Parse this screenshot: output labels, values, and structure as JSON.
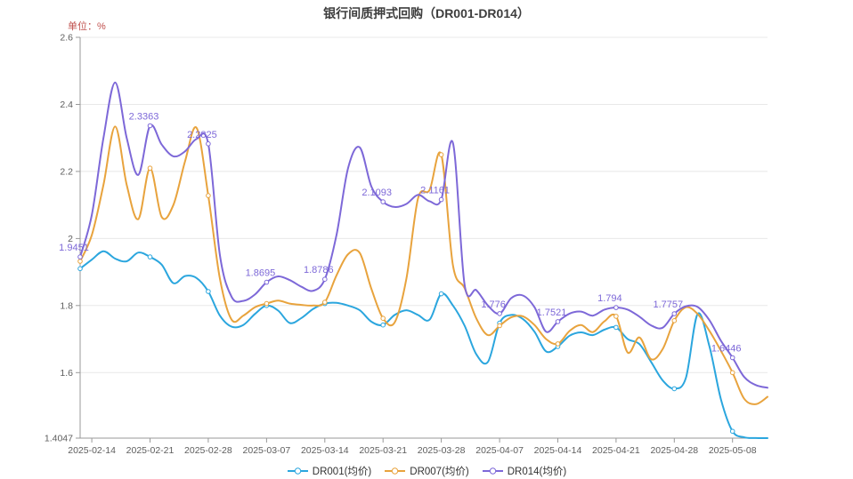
{
  "header": {
    "title": "银行间质押式回购（DR001-DR014）",
    "unit_label": "单位：%"
  },
  "chart_data": {
    "type": "line",
    "title": "银行间质押式回购（DR001-DR014）",
    "ylabel": "单位：%",
    "grid": true,
    "legend_position": "bottom",
    "smooth": true,
    "ylim": [
      1.4047,
      2.6
    ],
    "yticks": [
      {
        "value": 2.6,
        "label": "2.6",
        "gridline": true
      },
      {
        "value": 2.4,
        "label": "2.4",
        "gridline": true
      },
      {
        "value": 2.2,
        "label": "2.2",
        "gridline": true
      },
      {
        "value": 2.0,
        "label": "2",
        "gridline": true
      },
      {
        "value": 1.8,
        "label": "1.8",
        "gridline": true
      },
      {
        "value": 1.6,
        "label": "1.6",
        "gridline": true
      },
      {
        "value": 1.4047,
        "label": "1.4047",
        "gridline": false
      }
    ],
    "x_tick_labels": [
      "2025-02-14",
      "2025-02-21",
      "2025-02-28",
      "2025-03-07",
      "2025-03-14",
      "2025-03-21",
      "2025-03-28",
      "2025-04-07",
      "2025-04-14",
      "2025-04-21",
      "2025-04-28",
      "2025-05-08"
    ],
    "x_tick_indices": [
      1,
      6,
      11,
      16,
      21,
      26,
      31,
      36,
      41,
      46,
      51,
      56
    ],
    "n_points": 60,
    "marker_indices": [
      0,
      6,
      11,
      16,
      21,
      26,
      31,
      36,
      41,
      46,
      51,
      56
    ],
    "series": [
      {
        "name": "DR001(均价)",
        "key": "dr001",
        "color": "#2ba6de",
        "values": [
          1.91,
          1.937,
          1.962,
          1.94,
          1.932,
          1.958,
          1.945,
          1.922,
          1.867,
          1.888,
          1.882,
          1.842,
          1.77,
          1.737,
          1.742,
          1.775,
          1.8,
          1.785,
          1.748,
          1.763,
          1.79,
          1.806,
          1.808,
          1.8,
          1.786,
          1.752,
          1.742,
          1.772,
          1.786,
          1.772,
          1.758,
          1.835,
          1.8,
          1.74,
          1.655,
          1.632,
          1.748,
          1.772,
          1.76,
          1.722,
          1.663,
          1.678,
          1.71,
          1.72,
          1.712,
          1.728,
          1.735,
          1.7,
          1.685,
          1.632,
          1.577,
          1.552,
          1.585,
          1.775,
          1.68,
          1.52,
          1.425,
          1.407,
          1.405,
          1.4047
        ]
      },
      {
        "name": "DR007(均价)",
        "key": "dr007",
        "color": "#e8a33d",
        "values": [
          1.932,
          2.01,
          2.16,
          2.334,
          2.16,
          2.058,
          2.21,
          2.064,
          2.1,
          2.23,
          2.33,
          2.128,
          1.88,
          1.758,
          1.77,
          1.795,
          1.806,
          1.815,
          1.806,
          1.802,
          1.8,
          1.81,
          1.89,
          1.953,
          1.957,
          1.85,
          1.762,
          1.75,
          1.88,
          2.12,
          2.145,
          2.25,
          1.92,
          1.852,
          1.762,
          1.712,
          1.74,
          1.765,
          1.768,
          1.742,
          1.7,
          1.686,
          1.724,
          1.742,
          1.721,
          1.753,
          1.768,
          1.66,
          1.705,
          1.64,
          1.67,
          1.755,
          1.795,
          1.775,
          1.725,
          1.665,
          1.6,
          1.522,
          1.506,
          1.528
        ]
      },
      {
        "name": "DR014(均价)",
        "key": "dr014",
        "color": "#7d68d8",
        "values": [
          1.9451,
          2.07,
          2.3,
          2.465,
          2.3,
          2.19,
          2.3363,
          2.28,
          2.245,
          2.26,
          2.297,
          2.2825,
          1.95,
          1.826,
          1.814,
          1.833,
          1.8695,
          1.887,
          1.876,
          1.856,
          1.844,
          1.8786,
          2.01,
          2.21,
          2.272,
          2.155,
          2.1093,
          2.094,
          2.103,
          2.13,
          2.111,
          2.1161,
          2.285,
          1.862,
          1.846,
          1.8,
          1.776,
          1.822,
          1.83,
          1.795,
          1.722,
          1.7521,
          1.776,
          1.782,
          1.77,
          1.788,
          1.794,
          1.788,
          1.767,
          1.741,
          1.734,
          1.7757,
          1.798,
          1.796,
          1.757,
          1.695,
          1.6446,
          1.587,
          1.563,
          1.555
        ]
      }
    ],
    "annotations": [
      {
        "series": "DR014(均价)",
        "series_index": 2,
        "index": 0,
        "label": "1.9451"
      },
      {
        "series": "DR014(均价)",
        "series_index": 2,
        "index": 6,
        "label": "2.3363"
      },
      {
        "series": "DR014(均价)",
        "series_index": 2,
        "index": 11,
        "label": "2.2825"
      },
      {
        "series": "DR014(均价)",
        "series_index": 2,
        "index": 16,
        "label": "1.8695"
      },
      {
        "series": "DR014(均价)",
        "series_index": 2,
        "index": 21,
        "label": "1.8786"
      },
      {
        "series": "DR014(均价)",
        "series_index": 2,
        "index": 26,
        "label": "2.1093"
      },
      {
        "series": "DR014(均价)",
        "series_index": 2,
        "index": 31,
        "label": "2.1161"
      },
      {
        "series": "DR014(均价)",
        "series_index": 2,
        "index": 36,
        "label": "1.776"
      },
      {
        "series": "DR014(均价)",
        "series_index": 2,
        "index": 41,
        "label": "1.7521"
      },
      {
        "series": "DR014(均价)",
        "series_index": 2,
        "index": 46,
        "label": "1.794"
      },
      {
        "series": "DR014(均价)",
        "series_index": 2,
        "index": 51,
        "label": "1.7757"
      },
      {
        "series": "DR014(均价)",
        "series_index": 2,
        "index": 56,
        "label": "1.6446"
      }
    ],
    "colors": {
      "grid": "#e8e8e8",
      "axis": "#999999",
      "tick_text": "#5d5d5d",
      "annotation": "#7d68d8",
      "title": "#3d3d3d",
      "unit": "#c0504d"
    }
  },
  "legend": {
    "items": [
      {
        "label": "DR001(均价)",
        "color": "#2ba6de"
      },
      {
        "label": "DR007(均价)",
        "color": "#e8a33d"
      },
      {
        "label": "DR014(均价)",
        "color": "#7d68d8"
      }
    ]
  }
}
